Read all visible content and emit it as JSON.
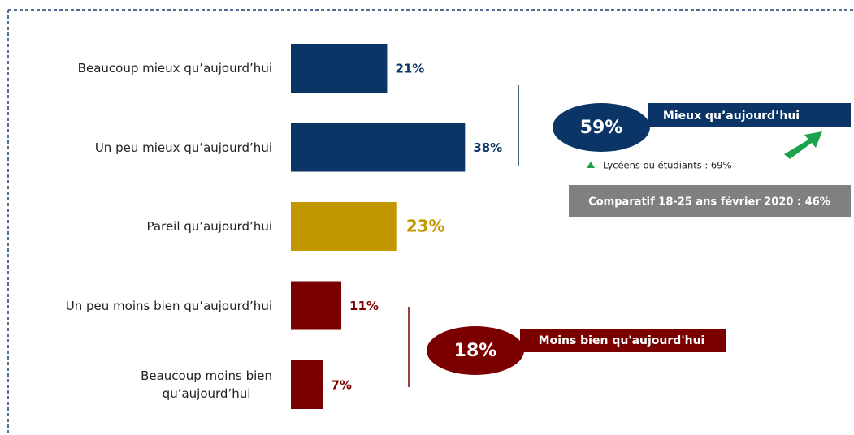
{
  "chart_data": {
    "type": "bar",
    "orientation": "horizontal",
    "categories": [
      "Beaucoup mieux qu’aujourd’hui",
      "Un peu mieux qu’aujourd’hui",
      "Pareil qu’aujourd’hui",
      "Un peu moins bien qu’aujourd’hui",
      "Beaucoup moins bien\nqu’aujourd’hui"
    ],
    "values": [
      21,
      38,
      23,
      11,
      7
    ],
    "value_labels": [
      "21%",
      "38%",
      "23%",
      "11%",
      "7%"
    ],
    "colors": [
      "#0b3566",
      "#0b3566",
      "#c39700",
      "#7a0000",
      "#7a0000"
    ],
    "annotations": {
      "better": {
        "value": "59%",
        "label": "Mieux qu’aujourd’hui",
        "detail": "Lycéens ou étudiants : 69%",
        "comparison": "Comparatif 18-25 ans février 2020 : 46%"
      },
      "worse": {
        "value": "18%",
        "label": "Moins bien qu'aujourd'hui"
      }
    }
  }
}
